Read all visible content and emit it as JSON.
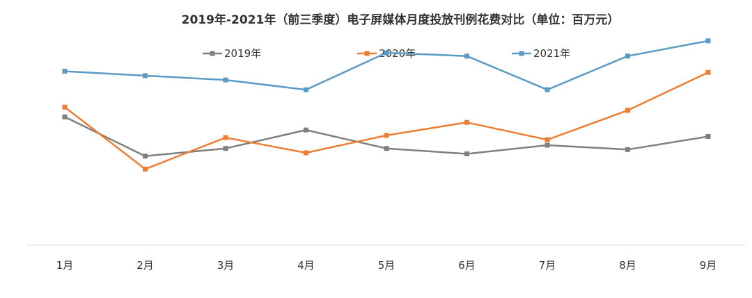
{
  "chart_data": {
    "type": "line",
    "title": "2019年-2021年（前三季度）电子屏媒体月度投放刊例花费对比（单位：百万元）",
    "xlabel": "",
    "ylabel": "",
    "categories": [
      "1月",
      "2月",
      "3月",
      "4月",
      "5月",
      "6月",
      "7月",
      "8月",
      "9月"
    ],
    "ylim": [
      0,
      100
    ],
    "grid": false,
    "legend_position": "top",
    "series": [
      {
        "name": "2019年",
        "color": "#7f7f7f",
        "values": [
          59,
          41,
          44.5,
          53,
          44.5,
          42,
          46,
          44,
          50
        ]
      },
      {
        "name": "2020年",
        "color": "#ed7d31",
        "values": [
          63.5,
          35,
          49.5,
          42.5,
          50.5,
          56.5,
          48.5,
          62,
          79.5
        ]
      },
      {
        "name": "2021年",
        "color": "#5a9bc5",
        "values": [
          80,
          78,
          76,
          71.5,
          88.5,
          87,
          71.5,
          87,
          94
        ]
      }
    ]
  }
}
